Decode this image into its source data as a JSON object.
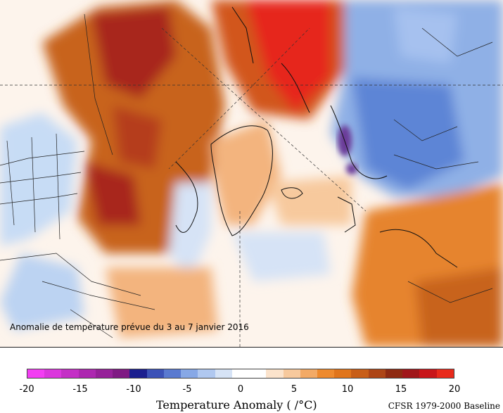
{
  "map": {
    "caption": "Anomalie de température prévue du 3 au 7 janvier 2016",
    "colors": {
      "warm_extreme": "#e6261b",
      "warm_strong": "#a8281f",
      "warm_mid": "#c8641a",
      "warm_light": "#f3b47e",
      "neutral": "#fdf4ec",
      "cool_light": "#b9d3f3",
      "cool_mid": "#5d85d6",
      "cool_strong": "#2f3fa6",
      "cold_extreme": "#7a2a8a",
      "coastline": "#111111"
    }
  },
  "legend": {
    "palette": [
      "#f33ef3",
      "#db37dd",
      "#c42fc6",
      "#ad28b0",
      "#962199",
      "#7f1a83",
      "#1b1f8f",
      "#3c52b7",
      "#5a7ad0",
      "#87a8e6",
      "#b0c8f0",
      "#d6e3f6",
      "#ffffff",
      "#ffffff",
      "#fbe3cc",
      "#f7c99d",
      "#f3aa66",
      "#ee8a2e",
      "#e0751c",
      "#c85e18",
      "#ad4516",
      "#8e2a12",
      "#a0171a",
      "#c8161a",
      "#e82a1c"
    ],
    "ticks": [
      "-20",
      "-15",
      "-10",
      "-5",
      "0",
      "5",
      "10",
      "15",
      "20"
    ],
    "title": "Temperature Anomaly (    /°C)",
    "baseline": "CFSR 1979-2000 Baseline"
  }
}
